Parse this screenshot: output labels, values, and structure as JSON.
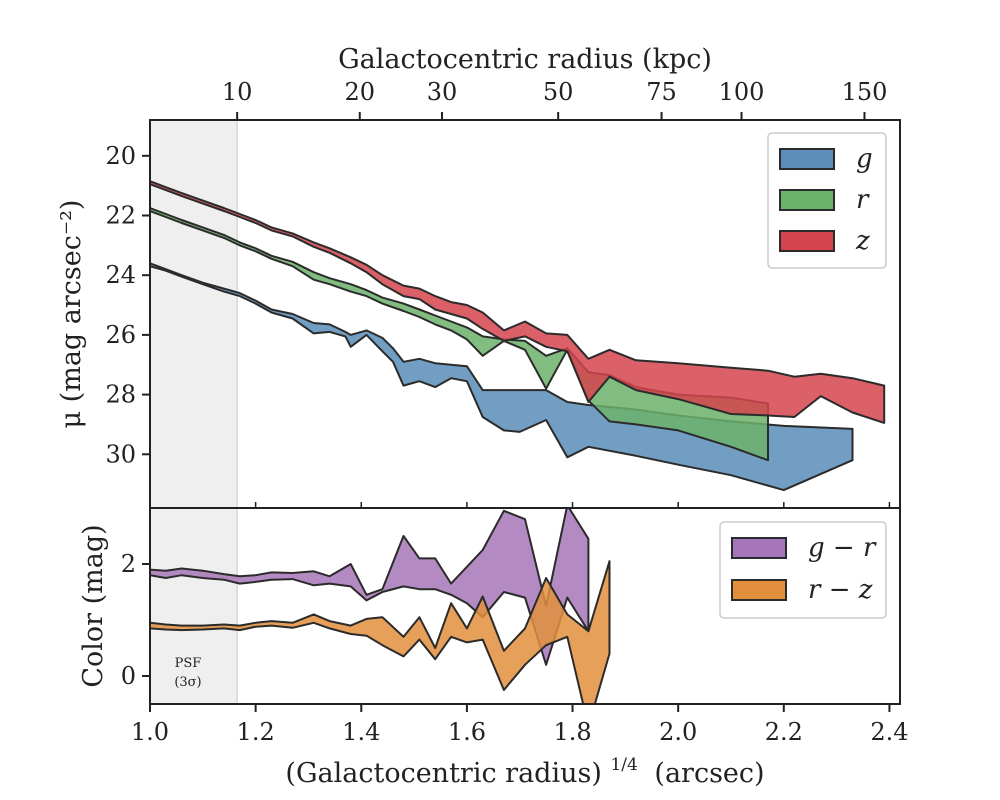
{
  "chart_data": [
    {
      "type": "area",
      "panel": "surface-brightness",
      "top_axis": {
        "label": "Galactocentric radius (kpc)",
        "tick_labels": [
          "10",
          "20",
          "30",
          "50",
          "75",
          "100",
          "150"
        ]
      },
      "ylabel": "μ (mag arcsec⁻²)",
      "ylim": [
        31.8,
        18.8
      ],
      "y_inverted": true,
      "yticks": [
        20,
        22,
        24,
        26,
        28,
        30
      ],
      "xlim": [
        1.0,
        2.42
      ],
      "legend": {
        "placement": "top-right",
        "entries": [
          "g",
          "r",
          "z"
        ]
      },
      "colors": {
        "g": "#5B8DB8",
        "r": "#6BB26B",
        "z": "#D5444E",
        "edge": "#2b2b2b"
      },
      "series": [
        {
          "name": "g",
          "x": [
            1.0,
            1.03,
            1.06,
            1.1,
            1.14,
            1.17,
            1.2,
            1.23,
            1.27,
            1.31,
            1.34,
            1.37,
            1.38,
            1.41,
            1.44,
            1.46,
            1.48,
            1.51,
            1.54,
            1.57,
            1.6,
            1.63,
            1.67,
            1.7,
            1.75,
            1.79,
            1.83,
            1.92,
            2.0,
            2.1,
            2.2,
            2.33
          ],
          "bright": [
            23.6,
            23.8,
            24.0,
            24.25,
            24.45,
            24.6,
            24.85,
            25.15,
            25.3,
            25.6,
            25.65,
            25.9,
            26.0,
            25.85,
            26.1,
            26.45,
            26.9,
            26.8,
            26.95,
            27.0,
            27.05,
            27.85,
            27.85,
            27.85,
            27.85,
            28.25,
            28.35,
            28.5,
            28.7,
            28.9,
            29.05,
            29.15
          ],
          "faint": [
            23.7,
            23.85,
            24.05,
            24.3,
            24.55,
            24.7,
            24.95,
            25.25,
            25.45,
            25.95,
            25.9,
            26.05,
            26.4,
            26.0,
            26.55,
            26.9,
            27.7,
            27.55,
            27.75,
            27.45,
            27.55,
            28.75,
            29.2,
            29.25,
            28.85,
            30.1,
            29.75,
            30.05,
            30.35,
            30.7,
            31.2,
            30.2
          ]
        },
        {
          "name": "r",
          "x": [
            1.0,
            1.03,
            1.06,
            1.1,
            1.14,
            1.17,
            1.2,
            1.23,
            1.27,
            1.31,
            1.34,
            1.38,
            1.41,
            1.44,
            1.48,
            1.51,
            1.54,
            1.57,
            1.6,
            1.63,
            1.67,
            1.71,
            1.75,
            1.79,
            1.83,
            1.87,
            1.92,
            2.0,
            2.1,
            2.17
          ],
          "bright": [
            21.75,
            21.95,
            22.15,
            22.4,
            22.65,
            22.9,
            23.1,
            23.35,
            23.55,
            23.9,
            24.1,
            24.3,
            24.5,
            24.75,
            24.95,
            25.15,
            25.35,
            25.55,
            25.75,
            26.05,
            26.15,
            26.2,
            26.7,
            26.45,
            27.25,
            27.35,
            27.75,
            28.0,
            28.1,
            28.3
          ],
          "faint": [
            21.85,
            22.05,
            22.25,
            22.5,
            22.75,
            23.0,
            23.2,
            23.45,
            23.7,
            24.15,
            24.3,
            24.55,
            24.7,
            24.95,
            25.2,
            25.4,
            25.65,
            25.85,
            26.15,
            26.7,
            26.2,
            26.5,
            27.8,
            26.5,
            28.2,
            28.9,
            29.0,
            29.2,
            29.75,
            30.2
          ]
        },
        {
          "name": "z",
          "x": [
            1.0,
            1.03,
            1.06,
            1.1,
            1.14,
            1.17,
            1.2,
            1.23,
            1.27,
            1.31,
            1.34,
            1.38,
            1.41,
            1.44,
            1.48,
            1.51,
            1.54,
            1.57,
            1.6,
            1.63,
            1.67,
            1.71,
            1.75,
            1.79,
            1.83,
            1.87,
            1.92,
            2.0,
            2.1,
            2.17,
            2.22,
            2.27,
            2.33,
            2.39
          ],
          "bright": [
            20.85,
            21.05,
            21.25,
            21.5,
            21.75,
            21.95,
            22.15,
            22.4,
            22.6,
            22.9,
            23.1,
            23.4,
            23.65,
            24.0,
            24.35,
            24.45,
            24.7,
            24.9,
            25.0,
            25.25,
            25.85,
            25.55,
            25.95,
            26.0,
            26.8,
            26.5,
            26.85,
            26.95,
            27.1,
            27.2,
            27.4,
            27.3,
            27.45,
            27.7
          ],
          "faint": [
            20.95,
            21.15,
            21.35,
            21.6,
            21.85,
            22.05,
            22.25,
            22.5,
            22.7,
            23.05,
            23.25,
            23.6,
            23.9,
            24.3,
            24.7,
            24.8,
            25.15,
            25.3,
            25.45,
            25.8,
            26.2,
            26.05,
            26.4,
            26.55,
            28.25,
            27.4,
            27.85,
            28.15,
            28.65,
            28.7,
            28.75,
            28.05,
            28.6,
            28.95
          ]
        }
      ]
    },
    {
      "type": "area",
      "panel": "color",
      "xlabel": "(Galactocentric radius)1/4 (arcsec)",
      "xlabel_base": "(Galactocentric radius)",
      "xlabel_sup": "1/4",
      "xlabel_unit": "(arcsec)",
      "ylabel": "Color (mag)",
      "ylim": [
        -0.5,
        3.0
      ],
      "yticks": [
        0,
        2
      ],
      "xlim": [
        1.0,
        2.42
      ],
      "xticks": [
        1.0,
        1.2,
        1.4,
        1.6,
        1.8,
        2.0,
        2.2,
        2.4
      ],
      "xtick_labels": [
        "1.0",
        "1.2",
        "1.4",
        "1.6",
        "1.8",
        "2.0",
        "2.2",
        "2.4"
      ],
      "legend": {
        "placement": "top-right",
        "entries": [
          "g − r",
          "r − z"
        ]
      },
      "colors": {
        "g-r": "#A775B9",
        "r-z": "#E28F3D",
        "edge": "#2b2b2b"
      },
      "series": [
        {
          "name": "g − r",
          "x": [
            1.0,
            1.03,
            1.06,
            1.1,
            1.14,
            1.17,
            1.2,
            1.23,
            1.27,
            1.31,
            1.34,
            1.38,
            1.41,
            1.44,
            1.48,
            1.51,
            1.54,
            1.57,
            1.6,
            1.63,
            1.67,
            1.71,
            1.75,
            1.79,
            1.83
          ],
          "upper": [
            1.9,
            1.88,
            1.92,
            1.88,
            1.82,
            1.78,
            1.8,
            1.85,
            1.84,
            1.87,
            1.78,
            2.0,
            1.45,
            1.55,
            2.5,
            2.1,
            2.1,
            1.65,
            1.95,
            2.25,
            2.95,
            2.8,
            1.25,
            3.05,
            2.45
          ],
          "lower": [
            1.8,
            1.75,
            1.8,
            1.75,
            1.72,
            1.65,
            1.68,
            1.72,
            1.73,
            1.62,
            1.65,
            1.6,
            1.35,
            1.5,
            1.6,
            1.55,
            1.55,
            1.45,
            1.3,
            1.05,
            1.5,
            1.4,
            0.2,
            1.4,
            0.8
          ]
        },
        {
          "name": "r − z",
          "x": [
            1.0,
            1.03,
            1.06,
            1.1,
            1.14,
            1.17,
            1.2,
            1.23,
            1.27,
            1.31,
            1.34,
            1.38,
            1.41,
            1.44,
            1.48,
            1.51,
            1.54,
            1.57,
            1.6,
            1.63,
            1.67,
            1.71,
            1.75,
            1.79,
            1.83,
            1.87
          ],
          "upper": [
            0.95,
            0.92,
            0.9,
            0.9,
            0.92,
            0.9,
            0.95,
            0.98,
            0.95,
            1.1,
            0.98,
            0.9,
            1.02,
            1.05,
            0.7,
            1.05,
            0.5,
            1.3,
            0.85,
            1.42,
            0.45,
            0.85,
            1.75,
            1.1,
            0.8,
            2.05
          ],
          "lower": [
            0.85,
            0.83,
            0.82,
            0.83,
            0.85,
            0.82,
            0.88,
            0.9,
            0.86,
            0.95,
            0.85,
            0.75,
            0.72,
            0.55,
            0.35,
            0.65,
            0.3,
            0.7,
            0.6,
            0.65,
            -0.25,
            0.2,
            0.55,
            0.7,
            -0.9,
            0.4
          ]
        }
      ]
    }
  ],
  "psf_annotation": {
    "line1": "PSF",
    "line2": "(3σ)",
    "x_end": 1.165
  }
}
